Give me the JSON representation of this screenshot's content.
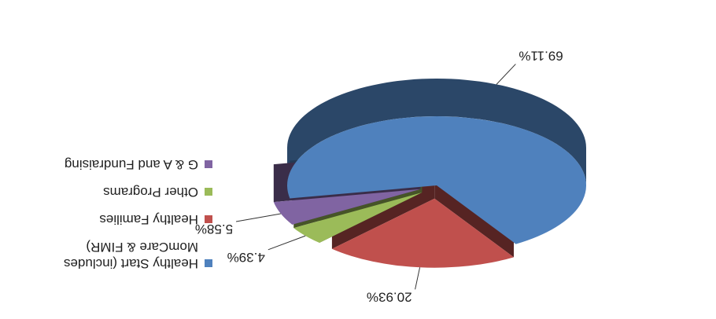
{
  "chart_data": {
    "type": "pie",
    "orientation": "rotated 180 degrees",
    "style": "3D exploded pie",
    "categories": [
      "Healthy Start (includes MomCare & FIMR)",
      "Healthy Families",
      "Other Programs",
      "G & A and Fundraising"
    ],
    "values": [
      69.11,
      20.93,
      4.39,
      5.58
    ],
    "value_labels": [
      "69.11%",
      "20.93%",
      "4.39%",
      "5.58%"
    ],
    "colors": [
      "#4f81bd",
      "#c0504d",
      "#9bbb59",
      "#8064a2"
    ],
    "legend": {
      "placement": "right",
      "items": [
        {
          "label": "Healthy Start (includes MomCare & FIMR)",
          "color": "#4f81bd"
        },
        {
          "label": "Healthy Families",
          "color": "#c0504d"
        },
        {
          "label": "Other Programs",
          "color": "#9bbb59"
        },
        {
          "label": "G & A and Fundraising",
          "color": "#8064a2"
        }
      ]
    }
  }
}
